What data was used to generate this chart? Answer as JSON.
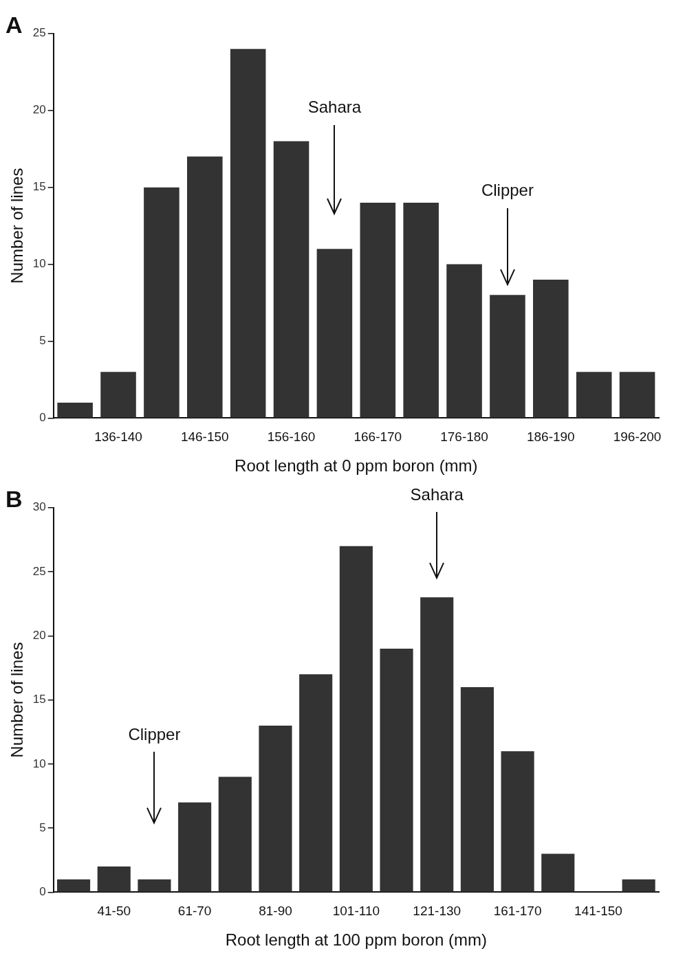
{
  "chart_data": [
    {
      "type": "bar",
      "title": "A",
      "xlabel": "Root length at 0 ppm boron (mm)",
      "ylabel": "Number of lines",
      "categories": [
        null,
        "136-140",
        null,
        "146-150",
        null,
        "156-160",
        null,
        "166-170",
        null,
        "176-180",
        null,
        "186-190",
        null,
        "196-200"
      ],
      "series": [
        {
          "color": "#333333",
          "values": [
            1,
            3,
            15,
            17,
            24,
            18,
            11,
            14,
            14,
            10,
            8,
            9,
            3,
            3
          ]
        }
      ],
      "ylim": [
        0,
        25
      ],
      "yticks": [
        0,
        5,
        10,
        15,
        20,
        25
      ],
      "grid": false,
      "legend": false,
      "annotations": [
        "Sahara",
        "Clipper"
      ]
    },
    {
      "type": "bar",
      "title": "B",
      "xlabel": "Root length at 100 ppm boron (mm)",
      "ylabel": "Number of lines",
      "categories": [
        null,
        "41-50",
        null,
        "61-70",
        null,
        "81-90",
        null,
        "101-110",
        null,
        "121-130",
        null,
        "161-170",
        null,
        "141-150",
        null
      ],
      "series": [
        {
          "color": "#333333",
          "values": [
            1,
            2,
            1,
            7,
            9,
            13,
            17,
            27,
            19,
            23,
            16,
            11,
            3,
            0,
            1
          ]
        }
      ],
      "ylim": [
        0,
        30
      ],
      "yticks": [
        0,
        5,
        10,
        15,
        20,
        25,
        30
      ],
      "grid": false,
      "legend": false,
      "annotations": [
        "Clipper",
        "Sahara"
      ]
    }
  ]
}
